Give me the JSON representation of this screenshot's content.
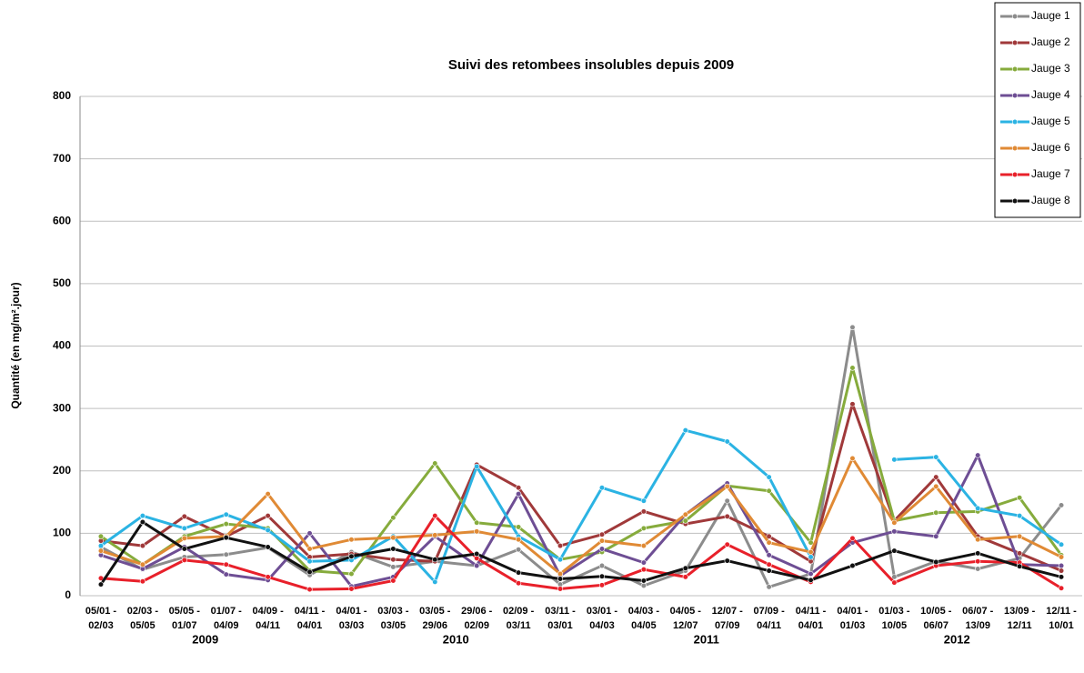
{
  "chart_data": {
    "type": "line",
    "title": "Suivi des retombees insolubles depuis 2009",
    "y_label": "Quantité (en mg/m².jour)",
    "categories": [
      "05/01 -\n02/03",
      "02/03 -\n05/05",
      "05/05 -\n01/07",
      "01/07 -\n04/09",
      "04/09 -\n04/11",
      "04/11 -\n04/01",
      "04/01 -\n03/03",
      "03/03 -\n03/05",
      "03/05 -\n29/06",
      "29/06 -\n02/09",
      "02/09 -\n03/11",
      "03/11 -\n03/01",
      "03/01 -\n04/03",
      "04/03 -\n04/05",
      "04/05 -\n12/07",
      "12/07 -\n07/09",
      "07/09 -\n04/11",
      "04/11 -\n04/01",
      "04/01 -\n01/03",
      "01/03 -\n10/05",
      "10/05 -\n06/07",
      "06/07 -\n13/09",
      "13/09 -\n12/11",
      "12/11 -\n10/01"
    ],
    "year_labels": [
      "2009",
      "2010",
      "2011",
      "2012"
    ],
    "ylim": [
      0,
      800
    ],
    "yticks": [
      0,
      100,
      200,
      300,
      400,
      500,
      600,
      700,
      800
    ],
    "grid": true,
    "legend": "top-right",
    "series": [
      {
        "name": "Jauge 1",
        "color": "#8c8c8c",
        "values": [
          78,
          42,
          62,
          66,
          77,
          33,
          70,
          46,
          55,
          48,
          74,
          18,
          48,
          16,
          40,
          152,
          14,
          35,
          430,
          30,
          55,
          43,
          60,
          145
        ]
      },
      {
        "name": "Jauge 2",
        "color": "#a0393a",
        "values": [
          88,
          80,
          127,
          95,
          128,
          62,
          67,
          58,
          55,
          210,
          173,
          80,
          98,
          135,
          115,
          127,
          95,
          55,
          307,
          120,
          190,
          95,
          68,
          40
        ]
      },
      {
        "name": "Jauge 3",
        "color": "#86ab3c",
        "values": [
          95,
          50,
          95,
          115,
          108,
          40,
          35,
          125,
          212,
          117,
          110,
          58,
          70,
          108,
          120,
          176,
          168,
          85,
          365,
          120,
          133,
          135,
          157,
          65
        ]
      },
      {
        "name": "Jauge 4",
        "color": "#6e4e94",
        "values": [
          65,
          43,
          78,
          34,
          25,
          100,
          15,
          30,
          95,
          48,
          163,
          32,
          75,
          53,
          130,
          180,
          65,
          35,
          85,
          103,
          95,
          225,
          50,
          48
        ]
      },
      {
        "name": "Jauge 5",
        "color": "#2bb3e3",
        "values": [
          80,
          128,
          108,
          130,
          105,
          55,
          57,
          95,
          22,
          207,
          95,
          58,
          173,
          152,
          265,
          247,
          190,
          62,
          null,
          218,
          222,
          140,
          128,
          82
        ]
      },
      {
        "name": "Jauge 6",
        "color": "#e08a35",
        "values": [
          72,
          50,
          92,
          95,
          163,
          75,
          90,
          93,
          97,
          103,
          90,
          35,
          88,
          80,
          130,
          175,
          85,
          70,
          220,
          117,
          175,
          90,
          95,
          62
        ]
      },
      {
        "name": "Jauge 7",
        "color": "#e8202a",
        "values": [
          28,
          23,
          57,
          50,
          30,
          10,
          11,
          24,
          128,
          60,
          20,
          11,
          17,
          42,
          30,
          82,
          50,
          22,
          92,
          21,
          48,
          55,
          53,
          12
        ]
      },
      {
        "name": "Jauge 8",
        "color": "#111111",
        "values": [
          18,
          118,
          75,
          93,
          78,
          38,
          63,
          75,
          58,
          67,
          37,
          27,
          31,
          24,
          44,
          56,
          40,
          25,
          48,
          72,
          54,
          68,
          47,
          30
        ]
      }
    ]
  }
}
